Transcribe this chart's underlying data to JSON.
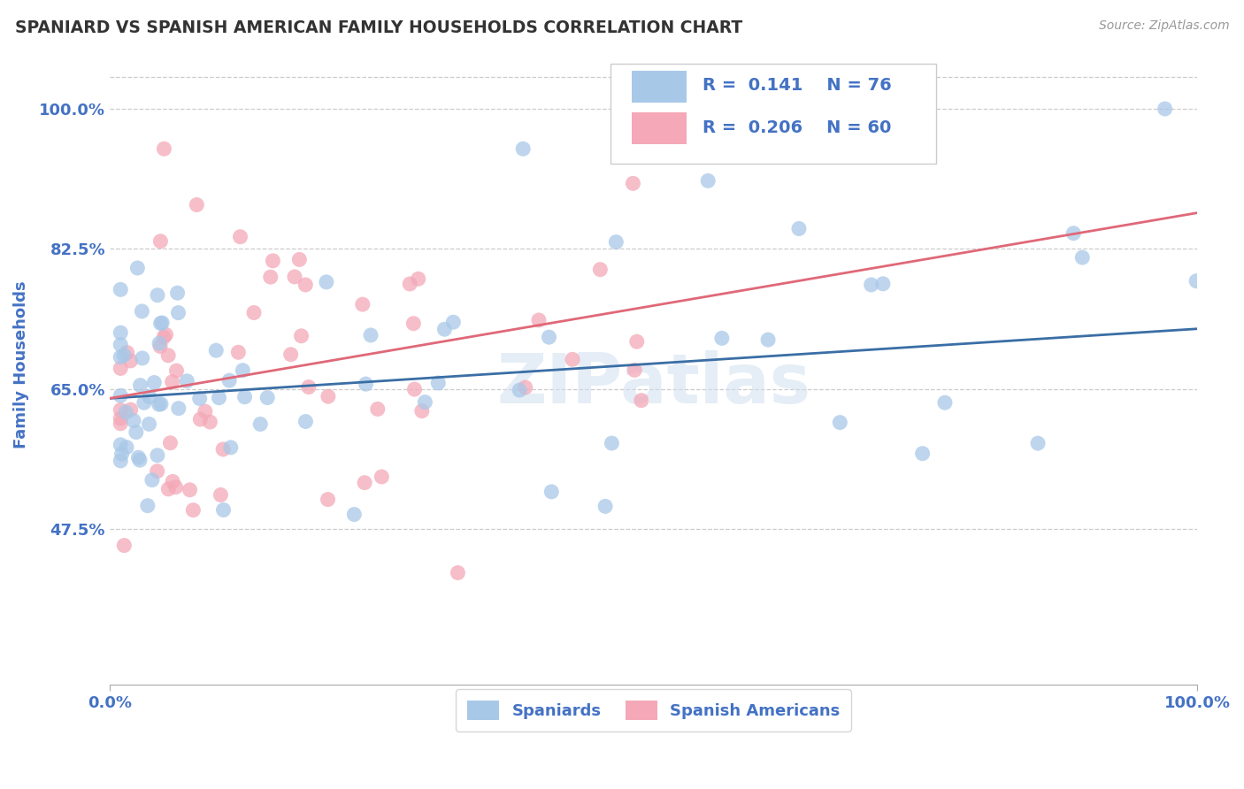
{
  "title": "SPANIARD VS SPANISH AMERICAN FAMILY HOUSEHOLDS CORRELATION CHART",
  "source": "Source: ZipAtlas.com",
  "ylabel": "Family Households",
  "ytick_vals": [
    0.475,
    0.65,
    0.825,
    1.0
  ],
  "ytick_labels": [
    "47.5%",
    "65.0%",
    "82.5%",
    "100.0%"
  ],
  "xlim": [
    0.0,
    1.0
  ],
  "ylim": [
    0.28,
    1.08
  ],
  "xtick_vals": [
    0.0,
    1.0
  ],
  "xtick_labels": [
    "0.0%",
    "100.0%"
  ],
  "legend_line1": "R =  0.141    N = 76",
  "legend_line2": "R =  0.206    N = 60",
  "watermark": "ZIPatlas",
  "blue_color": "#A8C8E8",
  "pink_color": "#F4A8B8",
  "blue_line_color": "#3A6EA5",
  "pink_line_color": "#E06878",
  "blue_trend_x": [
    0.0,
    1.0
  ],
  "blue_trend_y": [
    0.638,
    0.725
  ],
  "pink_trend_x": [
    0.0,
    1.0
  ],
  "pink_trend_y": [
    0.638,
    0.87
  ],
  "grid_color": "#CCCCCC",
  "background_color": "#FFFFFF",
  "title_color": "#333333",
  "axis_label_color": "#4472C4",
  "legend_value_color": "#4472C4"
}
